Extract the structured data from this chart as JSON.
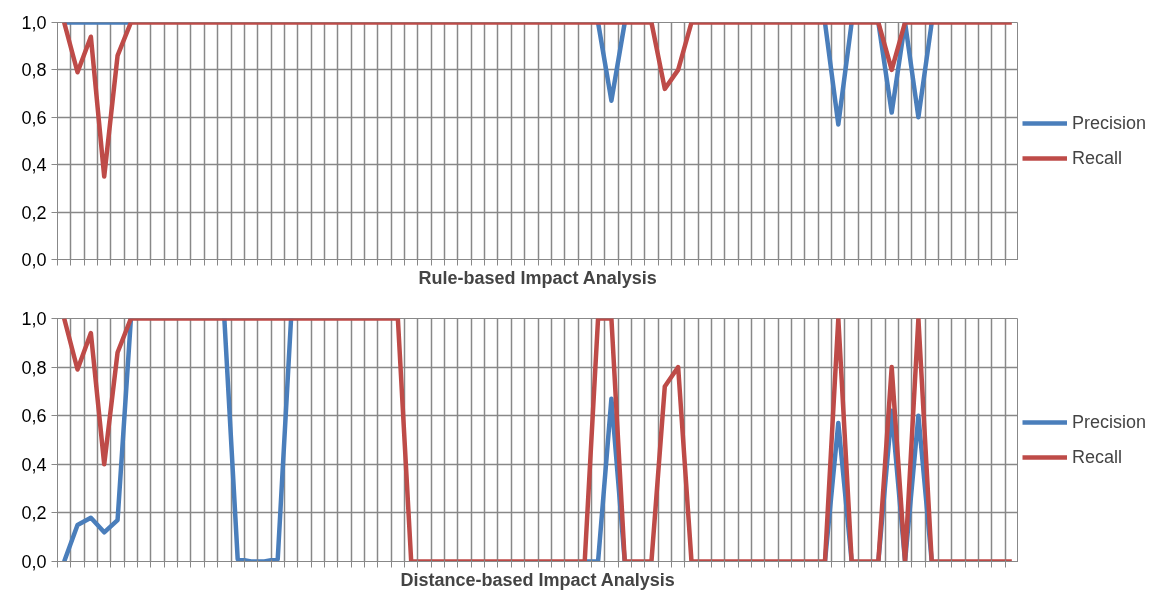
{
  "chart_data": [
    {
      "type": "line",
      "xlabel": "Rule-based Impact Analysis",
      "categories": [
        null,
        null,
        null,
        null,
        null,
        null,
        null,
        null,
        null,
        null,
        null,
        null,
        null,
        null,
        null,
        null,
        null,
        null,
        null,
        null,
        null,
        null,
        null,
        null,
        null,
        null,
        null,
        null,
        null,
        null,
        null,
        null,
        null,
        null,
        null,
        null,
        null,
        null,
        null,
        null,
        null,
        null,
        null,
        null,
        null,
        null,
        null,
        null,
        null,
        null,
        null,
        null,
        null,
        null,
        null,
        null,
        null,
        null,
        null,
        null,
        null,
        null,
        null,
        null,
        null,
        null,
        null,
        null,
        null,
        null,
        null,
        null
      ],
      "series": [
        {
          "name": "Precision",
          "color": "#4a7ebb",
          "values": [
            1,
            1,
            1,
            1,
            1,
            1,
            null,
            null,
            null,
            null,
            null,
            null,
            null,
            null,
            null,
            null,
            null,
            null,
            null,
            null,
            null,
            null,
            null,
            null,
            null,
            null,
            null,
            null,
            null,
            null,
            null,
            null,
            null,
            null,
            null,
            null,
            null,
            null,
            null,
            null,
            1,
            0.67,
            1,
            null,
            null,
            null,
            null,
            null,
            null,
            null,
            null,
            null,
            null,
            null,
            null,
            null,
            null,
            1,
            0.57,
            1,
            null,
            1,
            0.62,
            1,
            0.6,
            1,
            null,
            null,
            null,
            null,
            null,
            null
          ]
        },
        {
          "name": "Recall",
          "color": "#be4b48",
          "values": [
            1,
            0.79,
            0.94,
            0.35,
            0.86,
            1,
            1,
            1,
            1,
            1,
            1,
            1,
            1,
            1,
            1,
            1,
            1,
            1,
            1,
            1,
            1,
            1,
            1,
            1,
            1,
            1,
            1,
            1,
            1,
            1,
            1,
            1,
            1,
            1,
            1,
            1,
            1,
            1,
            1,
            1,
            1,
            1,
            1,
            1,
            1,
            0.72,
            0.8,
            1,
            1,
            1,
            1,
            1,
            1,
            1,
            1,
            1,
            1,
            1,
            1,
            1,
            1,
            1,
            0.8,
            1,
            1,
            1,
            1,
            1,
            1,
            1,
            1,
            1
          ]
        }
      ],
      "ylim": [
        0,
        1
      ],
      "yticks": [
        {
          "value": 0,
          "label": "0,0"
        },
        {
          "value": 0.2,
          "label": "0,2"
        },
        {
          "value": 0.4,
          "label": "0,4"
        },
        {
          "value": 0.6,
          "label": "0,6"
        },
        {
          "value": 0.8,
          "label": "0,8"
        },
        {
          "value": 1,
          "label": "1,0"
        }
      ],
      "grid": true,
      "legend": "right",
      "tick_labels": "y",
      "marker": "none",
      "line_style": "solid"
    },
    {
      "type": "line",
      "xlabel": "Distance-based Impact Analysis",
      "categories": [
        null,
        null,
        null,
        null,
        null,
        null,
        null,
        null,
        null,
        null,
        null,
        null,
        null,
        null,
        null,
        null,
        null,
        null,
        null,
        null,
        null,
        null,
        null,
        null,
        null,
        null,
        null,
        null,
        null,
        null,
        null,
        null,
        null,
        null,
        null,
        null,
        null,
        null,
        null,
        null,
        null,
        null,
        null,
        null,
        null,
        null,
        null,
        null,
        null,
        null,
        null,
        null,
        null,
        null,
        null,
        null,
        null,
        null,
        null,
        null,
        null,
        null,
        null,
        null,
        null,
        null,
        null,
        null,
        null,
        null,
        null,
        null
      ],
      "series": [
        {
          "name": "Precision",
          "color": "#4a7ebb",
          "values": [
            0,
            0.15,
            0.18,
            0.12,
            0.17,
            1,
            null,
            null,
            null,
            null,
            null,
            null,
            1,
            0.01,
            0,
            0,
            0.01,
            1,
            null,
            null,
            null,
            null,
            null,
            null,
            null,
            null,
            null,
            null,
            null,
            null,
            null,
            null,
            null,
            null,
            null,
            null,
            null,
            null,
            null,
            0,
            0,
            0.67,
            0,
            null,
            null,
            null,
            null,
            null,
            null,
            null,
            null,
            null,
            null,
            null,
            null,
            null,
            null,
            0,
            0.57,
            0,
            null,
            0,
            0.62,
            0,
            0.6,
            0,
            null,
            null,
            null,
            null,
            null,
            null
          ]
        },
        {
          "name": "Recall",
          "color": "#be4b48",
          "values": [
            1,
            0.79,
            0.94,
            0.4,
            0.86,
            1,
            1,
            1,
            1,
            1,
            1,
            1,
            1,
            1,
            1,
            1,
            1,
            1,
            1,
            1,
            1,
            1,
            1,
            1,
            1,
            1,
            0,
            0,
            0,
            0,
            0,
            0,
            0,
            0,
            0,
            0,
            0,
            0,
            0,
            0,
            1,
            1,
            0,
            0,
            0,
            0.72,
            0.8,
            0,
            0,
            0,
            0,
            0,
            0,
            0,
            0,
            0,
            0,
            0,
            1,
            0,
            0,
            0,
            0.8,
            0,
            1,
            0,
            0,
            0,
            0,
            0,
            0,
            0
          ]
        }
      ],
      "ylim": [
        0,
        1
      ],
      "yticks": [
        {
          "value": 0,
          "label": "0,0"
        },
        {
          "value": 0.2,
          "label": "0,2"
        },
        {
          "value": 0.4,
          "label": "0,4"
        },
        {
          "value": 0.6,
          "label": "0,6"
        },
        {
          "value": 0.8,
          "label": "0,8"
        },
        {
          "value": 1,
          "label": "1,0"
        }
      ],
      "grid": true,
      "legend": "right",
      "tick_labels": "y",
      "marker": "none",
      "line_style": "solid"
    }
  ]
}
